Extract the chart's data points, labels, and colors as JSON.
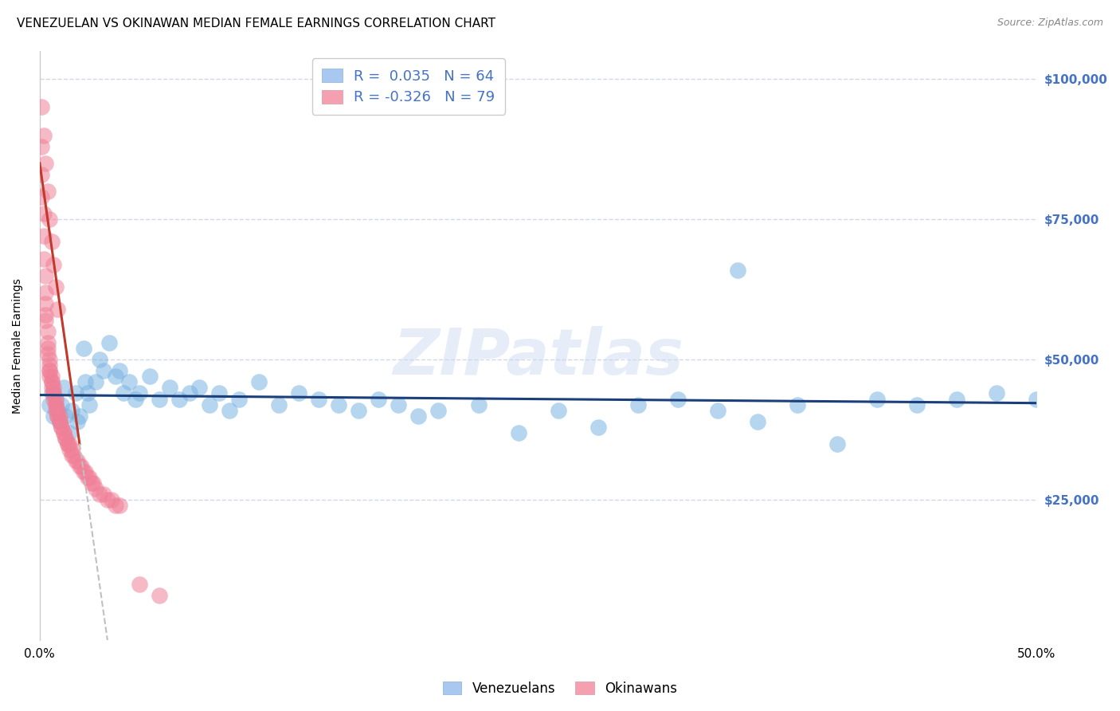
{
  "title": "VENEZUELAN VS OKINAWAN MEDIAN FEMALE EARNINGS CORRELATION CHART",
  "source": "Source: ZipAtlas.com",
  "ylabel": "Median Female Earnings",
  "watermark": "ZIPatlas",
  "xlim": [
    0.0,
    0.5
  ],
  "ylim": [
    0,
    105000
  ],
  "yticks": [
    25000,
    50000,
    75000,
    100000
  ],
  "ytick_labels": [
    "$25,000",
    "$50,000",
    "$75,000",
    "$100,000"
  ],
  "xticks": [
    0.0,
    0.1,
    0.2,
    0.3,
    0.4,
    0.5
  ],
  "xtick_labels": [
    "0.0%",
    "",
    "",
    "",
    "",
    "50.0%"
  ],
  "legend_labels_bottom": [
    "Venezuelans",
    "Okinawans"
  ],
  "blue_scatter_color": "#7ab3e0",
  "pink_scatter_color": "#f08098",
  "blue_line_color": "#1a3f7a",
  "pink_line_color": "#c0392b",
  "pink_line_dashed_color": "#c0c0c0",
  "ytick_color": "#4472c4",
  "background_color": "#ffffff",
  "grid_color": "#d0d8e8",
  "legend_blue_fill": "#a8c8f0",
  "legend_pink_fill": "#f4a0b0",
  "title_fontsize": 11,
  "source_fontsize": 9,
  "blue_x": [
    0.005,
    0.006,
    0.007,
    0.008,
    0.009,
    0.01,
    0.011,
    0.012,
    0.013,
    0.015,
    0.016,
    0.018,
    0.019,
    0.02,
    0.022,
    0.023,
    0.024,
    0.025,
    0.028,
    0.03,
    0.032,
    0.035,
    0.038,
    0.04,
    0.042,
    0.045,
    0.048,
    0.05,
    0.055,
    0.06,
    0.065,
    0.07,
    0.075,
    0.08,
    0.085,
    0.09,
    0.095,
    0.1,
    0.11,
    0.12,
    0.13,
    0.14,
    0.15,
    0.16,
    0.17,
    0.18,
    0.19,
    0.2,
    0.22,
    0.24,
    0.26,
    0.28,
    0.3,
    0.32,
    0.34,
    0.36,
    0.38,
    0.4,
    0.42,
    0.44,
    0.46,
    0.48,
    0.5,
    0.35
  ],
  "blue_y": [
    42000,
    44000,
    40000,
    43000,
    41000,
    39000,
    42000,
    45000,
    40000,
    37000,
    41000,
    44000,
    39000,
    40000,
    52000,
    46000,
    44000,
    42000,
    46000,
    50000,
    48000,
    53000,
    47000,
    48000,
    44000,
    46000,
    43000,
    44000,
    47000,
    43000,
    45000,
    43000,
    44000,
    45000,
    42000,
    44000,
    41000,
    43000,
    46000,
    42000,
    44000,
    43000,
    42000,
    41000,
    43000,
    42000,
    40000,
    41000,
    42000,
    37000,
    41000,
    38000,
    42000,
    43000,
    41000,
    39000,
    42000,
    35000,
    43000,
    42000,
    43000,
    44000,
    43000,
    66000
  ],
  "pink_x": [
    0.001,
    0.001,
    0.001,
    0.002,
    0.002,
    0.002,
    0.003,
    0.003,
    0.003,
    0.003,
    0.003,
    0.004,
    0.004,
    0.004,
    0.004,
    0.005,
    0.005,
    0.005,
    0.005,
    0.005,
    0.006,
    0.006,
    0.006,
    0.006,
    0.007,
    0.007,
    0.007,
    0.007,
    0.008,
    0.008,
    0.008,
    0.008,
    0.009,
    0.009,
    0.009,
    0.01,
    0.01,
    0.01,
    0.011,
    0.011,
    0.012,
    0.012,
    0.013,
    0.013,
    0.014,
    0.014,
    0.015,
    0.015,
    0.016,
    0.016,
    0.017,
    0.018,
    0.019,
    0.02,
    0.021,
    0.022,
    0.023,
    0.024,
    0.025,
    0.026,
    0.027,
    0.028,
    0.03,
    0.032,
    0.034,
    0.036,
    0.038,
    0.04,
    0.001,
    0.002,
    0.003,
    0.004,
    0.005,
    0.006,
    0.007,
    0.008,
    0.009,
    0.05,
    0.06
  ],
  "pink_y": [
    88000,
    83000,
    79000,
    76000,
    72000,
    68000,
    65000,
    62000,
    60000,
    58000,
    57000,
    55000,
    53000,
    52000,
    51000,
    50000,
    49000,
    48000,
    48000,
    47000,
    47000,
    46000,
    46000,
    45000,
    45000,
    44000,
    44000,
    43000,
    43000,
    42000,
    42000,
    41000,
    41000,
    40000,
    40000,
    40000,
    39000,
    39000,
    38000,
    38000,
    37000,
    37000,
    36000,
    36000,
    35000,
    35000,
    35000,
    34000,
    34000,
    33000,
    33000,
    32000,
    32000,
    31000,
    31000,
    30000,
    30000,
    29000,
    29000,
    28000,
    28000,
    27000,
    26000,
    26000,
    25000,
    25000,
    24000,
    24000,
    95000,
    90000,
    85000,
    80000,
    75000,
    71000,
    67000,
    63000,
    59000,
    10000,
    8000
  ],
  "pink_line_solid_end_x": 0.02,
  "pink_line_dashed_end_x": 0.15
}
